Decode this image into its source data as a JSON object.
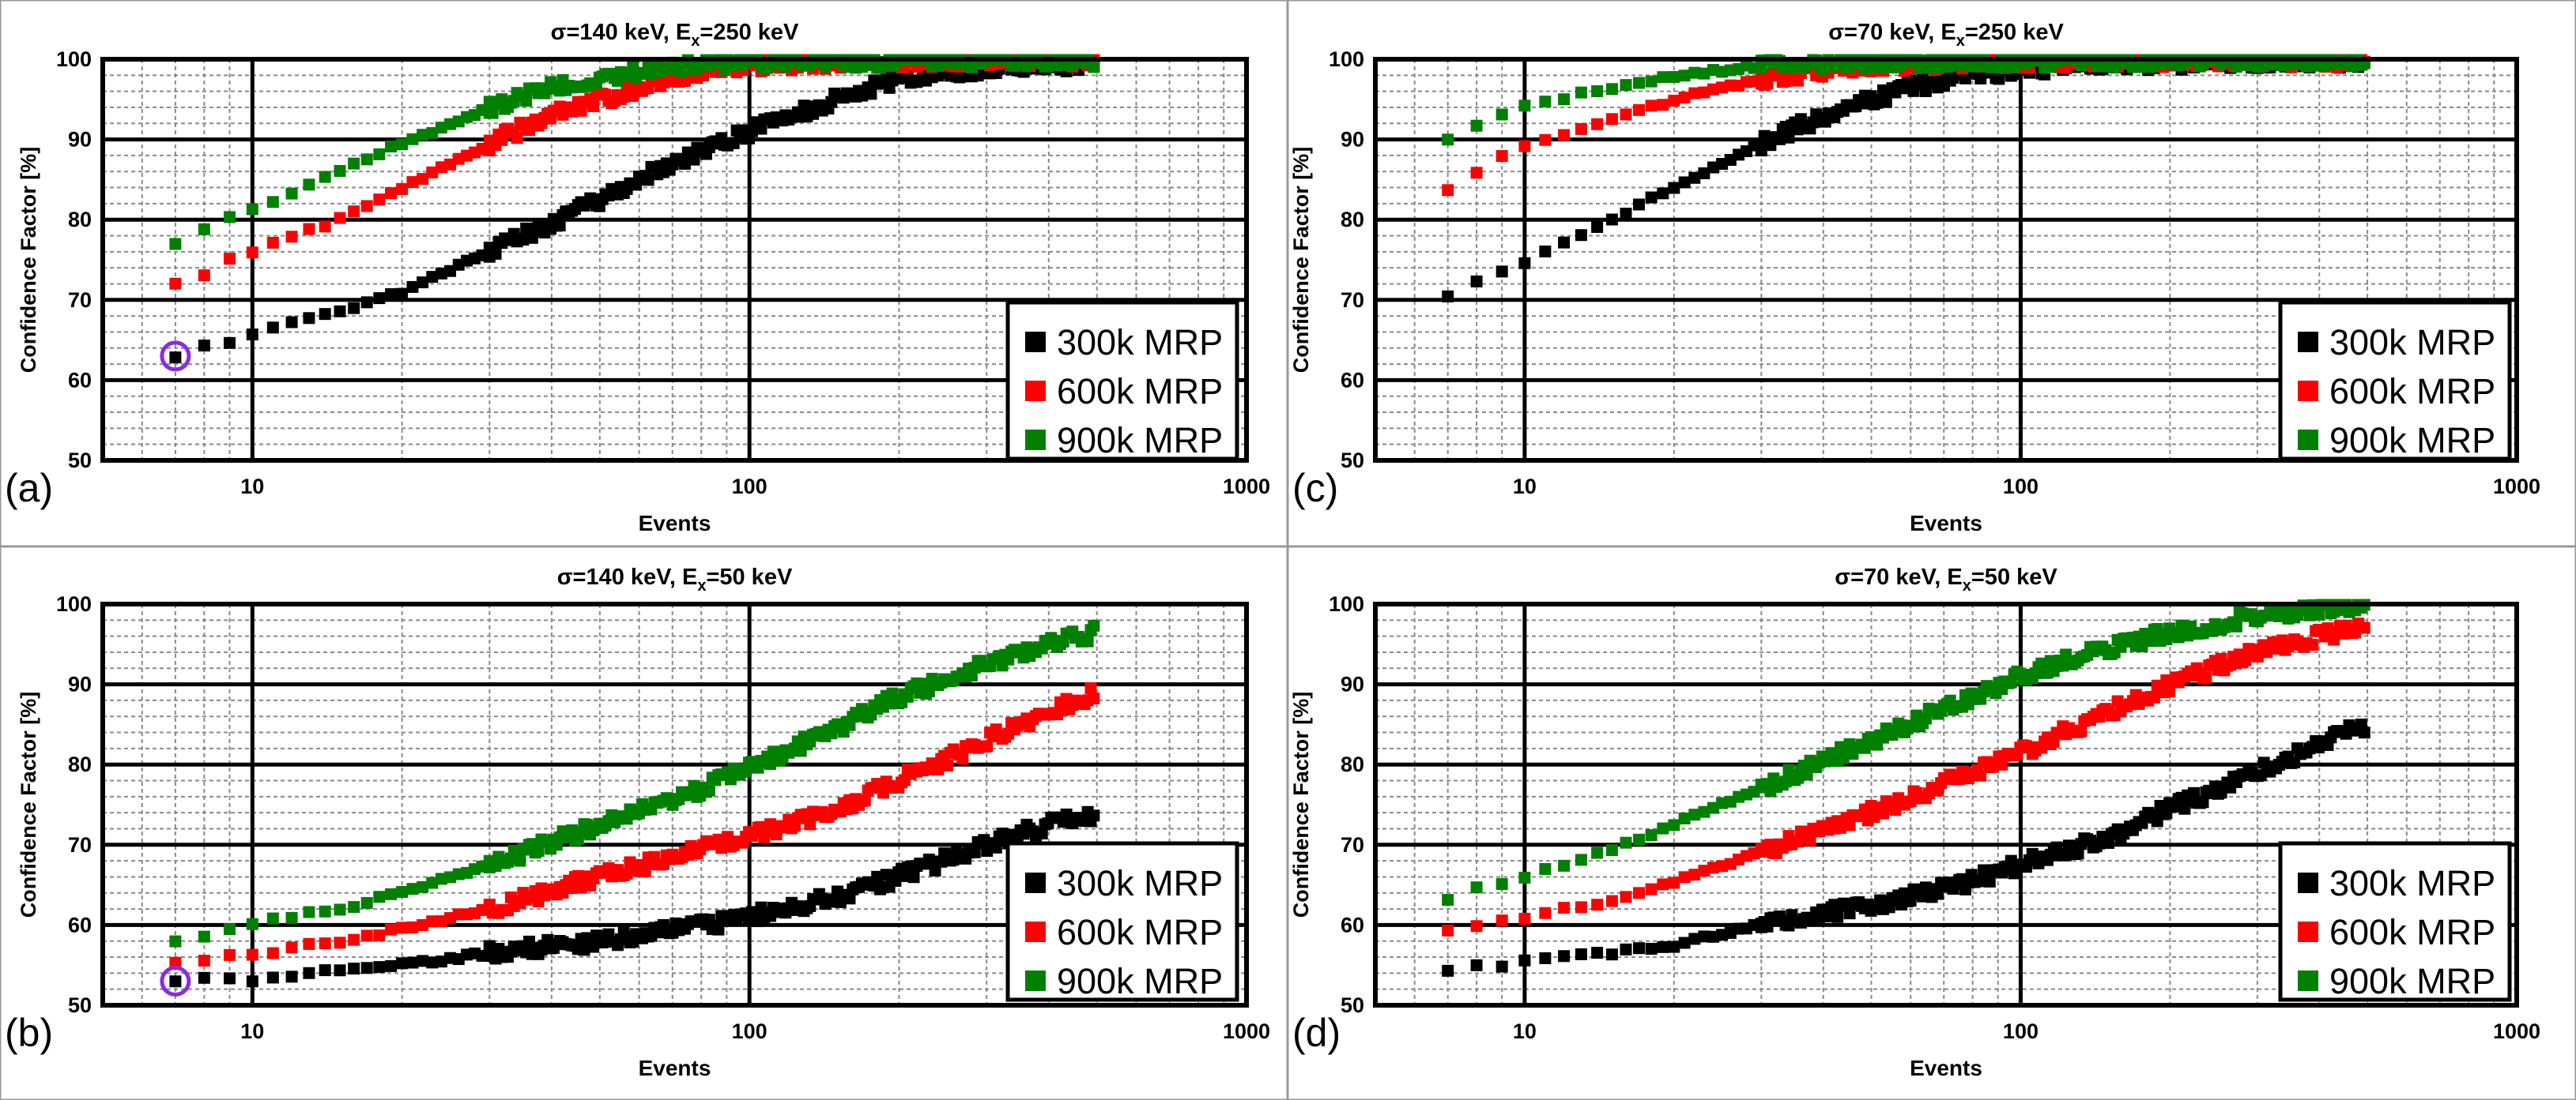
{
  "figure": {
    "x_axis_label": "Events",
    "y_axis_label": "Confidence Factor [%]",
    "legend_marker_size_units": "square",
    "colors": {
      "300k MRP": "#000000",
      "600k MRP": "#ff0000",
      "900k MRP": "#008000",
      "highlight": "#8a2be2"
    }
  },
  "chart_data": [
    {
      "panel": "(a)",
      "type": "scatter",
      "title_main": "σ=140 keV, E",
      "title_sub": "x",
      "title_tail": "=250 keV",
      "xlabel": "Events",
      "ylabel": "Confidence Factor [%]",
      "xscale": "log",
      "xlim": [
        5,
        1000
      ],
      "ylim": [
        50,
        100
      ],
      "xticks": [
        10,
        100,
        1000
      ],
      "yticks": [
        50,
        60,
        70,
        80,
        90,
        100
      ],
      "legend": [
        "300k MRP",
        "600k MRP",
        "900k MRP"
      ],
      "legend_position": "bottom-right",
      "highlight_point": {
        "series": "300k MRP",
        "x": 7,
        "y": 63
      },
      "series": [
        {
          "name": "300k MRP",
          "color": "#000000",
          "curve": [
            [
              7,
              63
            ],
            [
              8,
              64.3
            ],
            [
              9,
              64.6
            ],
            [
              10,
              65.8
            ],
            [
              15,
              68.5
            ],
            [
              20,
              71
            ],
            [
              30,
              76
            ],
            [
              40,
              79.5
            ],
            [
              60,
              85
            ],
            [
              80,
              88.5
            ],
            [
              100,
              91
            ],
            [
              150,
              95
            ],
            [
              200,
              97.5
            ],
            [
              300,
              99
            ],
            [
              500,
              99.5
            ]
          ]
        },
        {
          "name": "600k MRP",
          "color": "#ff0000",
          "curve": [
            [
              7,
              72
            ],
            [
              8,
              73.3
            ],
            [
              9,
              75
            ],
            [
              10,
              76
            ],
            [
              15,
              80
            ],
            [
              20,
              84
            ],
            [
              30,
              89.5
            ],
            [
              40,
              93
            ],
            [
              60,
              96.5
            ],
            [
              80,
              98.5
            ],
            [
              100,
              99.3
            ],
            [
              150,
              99.7
            ],
            [
              500,
              99.9
            ]
          ]
        },
        {
          "name": "900k MRP",
          "color": "#008000",
          "curve": [
            [
              7,
              77
            ],
            [
              8,
              79
            ],
            [
              9,
              80.5
            ],
            [
              10,
              81.2
            ],
            [
              15,
              86
            ],
            [
              20,
              89.5
            ],
            [
              30,
              94
            ],
            [
              40,
              96.5
            ],
            [
              60,
              98.5
            ],
            [
              80,
              99.3
            ],
            [
              100,
              99.7
            ],
            [
              500,
              99.9
            ]
          ]
        }
      ]
    },
    {
      "panel": "(b)",
      "type": "scatter",
      "title_main": "σ=140 keV, E",
      "title_sub": "x",
      "title_tail": "=50 keV",
      "xlabel": "Events",
      "ylabel": "Confidence Factor [%]",
      "xscale": "log",
      "xlim": [
        5,
        1000
      ],
      "ylim": [
        50,
        100
      ],
      "xticks": [
        10,
        100,
        1000
      ],
      "yticks": [
        50,
        60,
        70,
        80,
        90,
        100
      ],
      "legend": [
        "300k MRP",
        "600k MRP",
        "900k MRP"
      ],
      "legend_position": "bottom-right",
      "highlight_point": {
        "series": "300k MRP",
        "x": 7,
        "y": 53
      },
      "series": [
        {
          "name": "300k MRP",
          "color": "#000000",
          "curve": [
            [
              7,
              53
            ],
            [
              8,
              53.2
            ],
            [
              10,
              53.2
            ],
            [
              12,
              53.4
            ],
            [
              15,
              54.5
            ],
            [
              20,
              55
            ],
            [
              30,
              56.5
            ],
            [
              50,
              58
            ],
            [
              80,
              59.8
            ],
            [
              100,
              61
            ],
            [
              150,
              63.5
            ],
            [
              200,
              66
            ],
            [
              300,
              70
            ],
            [
              400,
              72.5
            ],
            [
              500,
              74
            ]
          ]
        },
        {
          "name": "600k MRP",
          "color": "#ff0000",
          "curve": [
            [
              7,
              55.5
            ],
            [
              8,
              55.8
            ],
            [
              10,
              56.3
            ],
            [
              15,
              58
            ],
            [
              20,
              59.5
            ],
            [
              30,
              62
            ],
            [
              50,
              66
            ],
            [
              80,
              69.5
            ],
            [
              100,
              71
            ],
            [
              150,
              74.5
            ],
            [
              200,
              78
            ],
            [
              300,
              83
            ],
            [
              400,
              86.5
            ],
            [
              500,
              89
            ]
          ]
        },
        {
          "name": "900k MRP",
          "color": "#008000",
          "curve": [
            [
              7,
              58
            ],
            [
              8,
              58.5
            ],
            [
              10,
              60.3
            ],
            [
              15,
              62
            ],
            [
              20,
              64
            ],
            [
              30,
              67.5
            ],
            [
              50,
              72.5
            ],
            [
              80,
              77
            ],
            [
              100,
              79.5
            ],
            [
              150,
              84.5
            ],
            [
              200,
              88.5
            ],
            [
              300,
              92.5
            ],
            [
              400,
              95
            ],
            [
              500,
              96.5
            ]
          ]
        }
      ]
    },
    {
      "panel": "(c)",
      "type": "scatter",
      "title_main": "σ=70 keV, E",
      "title_sub": "x",
      "title_tail": "=250 keV",
      "xlabel": "Events",
      "ylabel": "Confidence Factor [%]",
      "xscale": "log",
      "xlim": [
        5,
        1000
      ],
      "ylim": [
        50,
        100
      ],
      "xticks": [
        10,
        100,
        1000
      ],
      "yticks": [
        50,
        60,
        70,
        80,
        90,
        100
      ],
      "legend": [
        "300k MRP",
        "600k MRP",
        "900k MRP"
      ],
      "legend_position": "bottom-right",
      "series": [
        {
          "name": "300k MRP",
          "color": "#000000",
          "curve": [
            [
              7,
              70.5
            ],
            [
              8,
              72.3
            ],
            [
              9,
              73.5
            ],
            [
              10,
              74.8
            ],
            [
              15,
              80
            ],
            [
              20,
              84
            ],
            [
              30,
              89.5
            ],
            [
              40,
              93
            ],
            [
              60,
              96.5
            ],
            [
              80,
              98
            ],
            [
              100,
              98.8
            ],
            [
              150,
              99.5
            ],
            [
              500,
              99.8
            ]
          ]
        },
        {
          "name": "600k MRP",
          "color": "#ff0000",
          "curve": [
            [
              7,
              83.8
            ],
            [
              8,
              86
            ],
            [
              9,
              87.7
            ],
            [
              10,
              89
            ],
            [
              15,
              92.5
            ],
            [
              20,
              95
            ],
            [
              30,
              97.5
            ],
            [
              40,
              98.7
            ],
            [
              60,
              99.5
            ],
            [
              100,
              99.8
            ],
            [
              500,
              99.9
            ]
          ]
        },
        {
          "name": "900k MRP",
          "color": "#008000",
          "curve": [
            [
              7,
              90
            ],
            [
              8,
              91.7
            ],
            [
              9,
              93
            ],
            [
              10,
              94.2
            ],
            [
              15,
              96.5
            ],
            [
              20,
              98
            ],
            [
              30,
              99.2
            ],
            [
              40,
              99.6
            ],
            [
              60,
              99.8
            ],
            [
              500,
              99.9
            ]
          ]
        }
      ]
    },
    {
      "panel": "(d)",
      "type": "scatter",
      "title_main": "σ=70 keV, E",
      "title_sub": "x",
      "title_tail": "=50 keV",
      "xlabel": "Events",
      "ylabel": "Confidence Factor [%]",
      "xscale": "log",
      "xlim": [
        5,
        1000
      ],
      "ylim": [
        50,
        100
      ],
      "xticks": [
        10,
        100,
        1000
      ],
      "yticks": [
        50,
        60,
        70,
        80,
        90,
        100
      ],
      "legend": [
        "300k MRP",
        "600k MRP",
        "900k MRP"
      ],
      "legend_position": "bottom-right",
      "series": [
        {
          "name": "300k MRP",
          "color": "#000000",
          "curve": [
            [
              7,
              54.5
            ],
            [
              8,
              54.8
            ],
            [
              9,
              55
            ],
            [
              10,
              55.5
            ],
            [
              15,
              56.5
            ],
            [
              20,
              57.5
            ],
            [
              30,
              60
            ],
            [
              50,
              62.5
            ],
            [
              80,
              65.5
            ],
            [
              100,
              67.5
            ],
            [
              150,
              71
            ],
            [
              200,
              74.5
            ],
            [
              300,
              79
            ],
            [
              400,
              82.5
            ],
            [
              500,
              85
            ]
          ]
        },
        {
          "name": "600k MRP",
          "color": "#ff0000",
          "curve": [
            [
              7,
              59.5
            ],
            [
              8,
              60
            ],
            [
              10,
              61
            ],
            [
              15,
              63
            ],
            [
              20,
              65.5
            ],
            [
              30,
              69
            ],
            [
              50,
              74
            ],
            [
              80,
              79
            ],
            [
              100,
              81.5
            ],
            [
              150,
              86.5
            ],
            [
              200,
              90
            ],
            [
              300,
              94
            ],
            [
              400,
              96
            ],
            [
              500,
              97.5
            ]
          ]
        },
        {
          "name": "900k MRP",
          "color": "#008000",
          "curve": [
            [
              7,
              63
            ],
            [
              8,
              64.5
            ],
            [
              10,
              66
            ],
            [
              15,
              69.5
            ],
            [
              20,
              72.5
            ],
            [
              30,
              77
            ],
            [
              50,
              83
            ],
            [
              80,
              88.5
            ],
            [
              100,
              91
            ],
            [
              150,
              94.5
            ],
            [
              200,
              96.5
            ],
            [
              300,
              98.5
            ],
            [
              400,
              99.3
            ],
            [
              500,
              99.7
            ]
          ]
        }
      ]
    }
  ]
}
